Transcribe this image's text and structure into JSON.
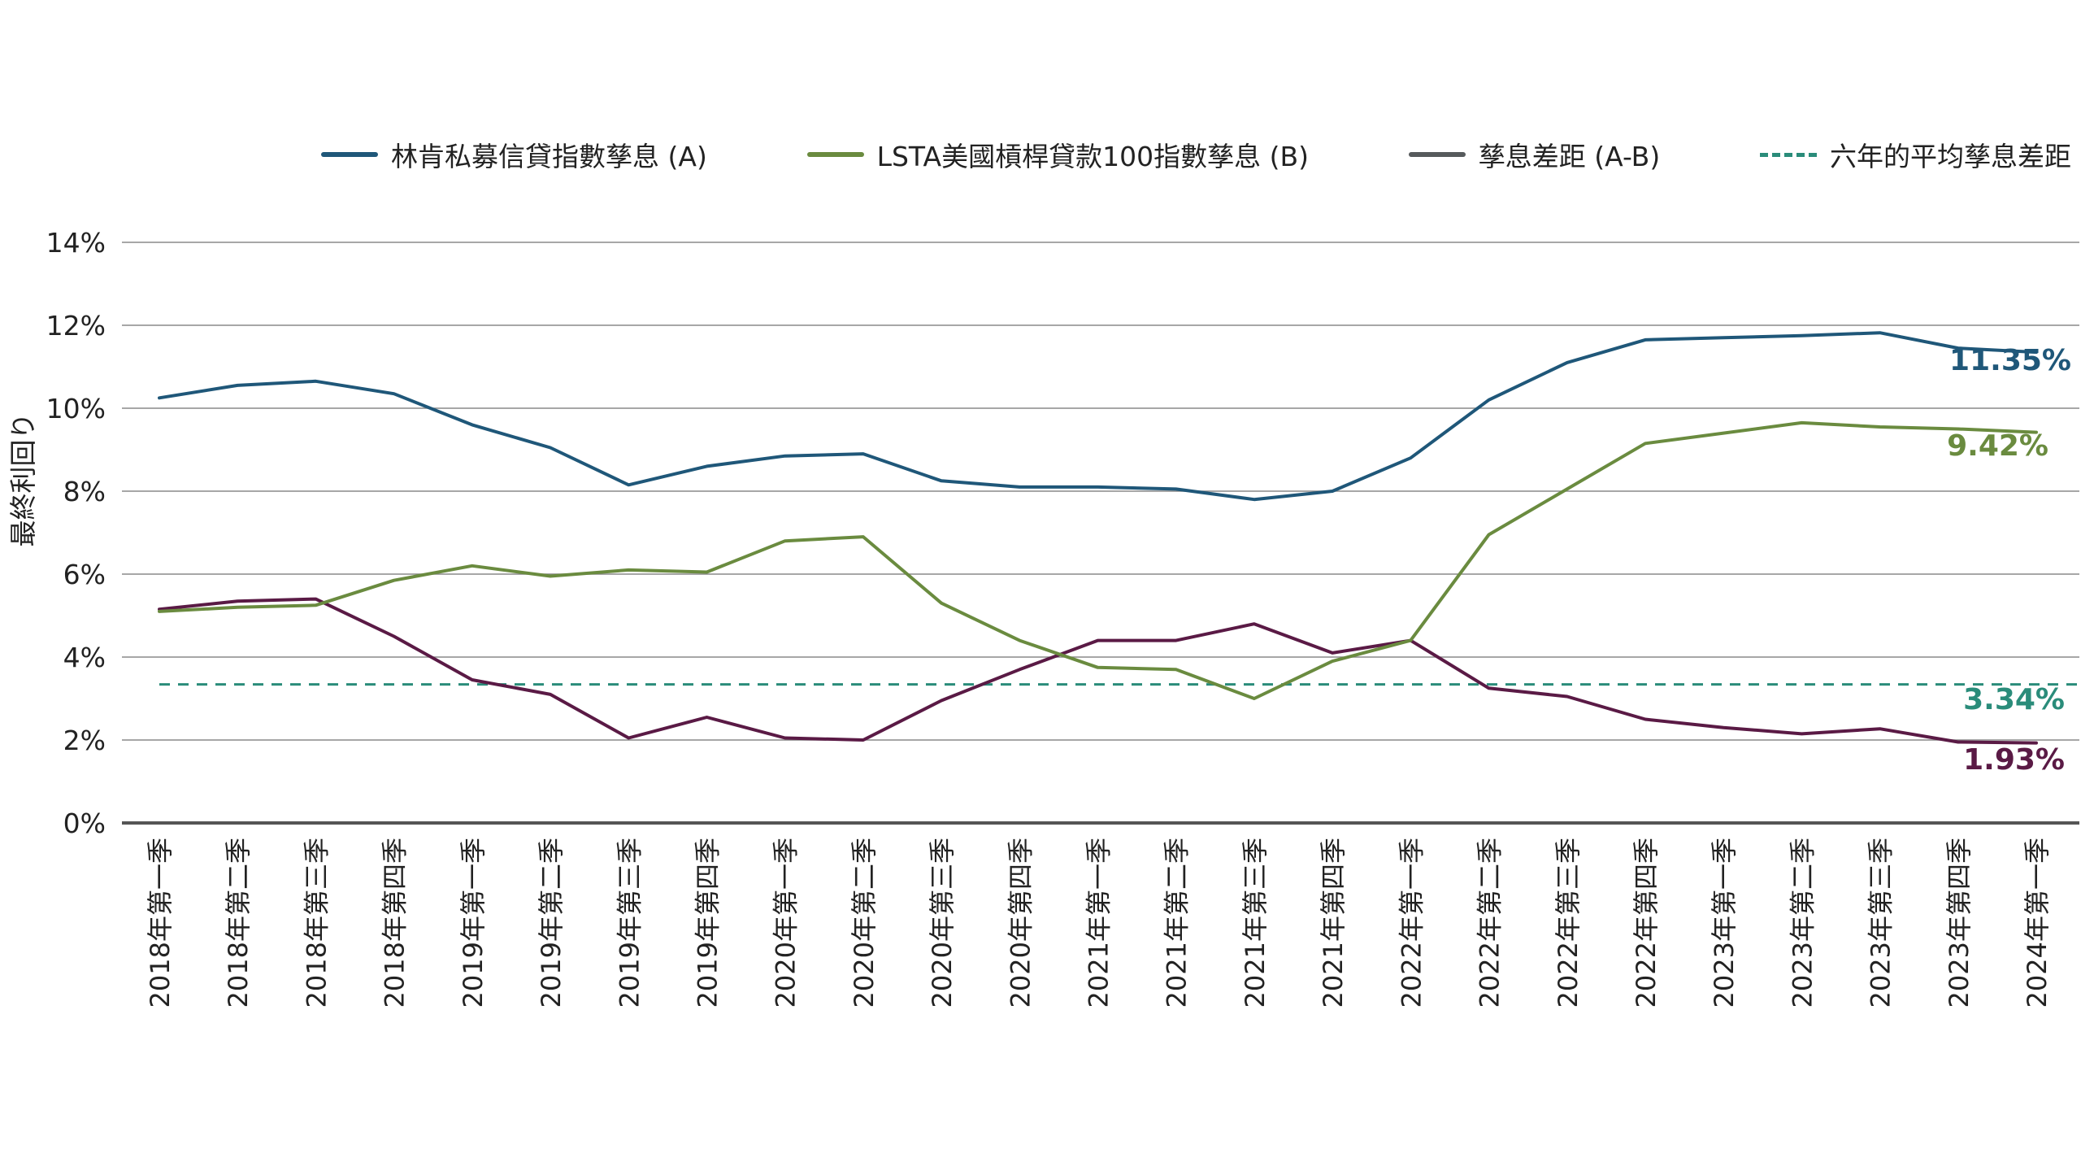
{
  "chart_data": {
    "type": "line",
    "ylabel": "最終利回り",
    "ylim": [
      0,
      14
    ],
    "yticks": [
      "0%",
      "2%",
      "4%",
      "6%",
      "8%",
      "10%",
      "12%",
      "14%"
    ],
    "grid": true,
    "legend_position": "top",
    "categories": [
      "2018年第一季",
      "2018年第二季",
      "2018年第三季",
      "2018年第四季",
      "2019年第一季",
      "2019年第二季",
      "2019年第三季",
      "2019年第四季",
      "2020年第一季",
      "2020年第二季",
      "2020年第三季",
      "2020年第四季",
      "2021年第一季",
      "2021年第二季",
      "2021年第三季",
      "2021年第四季",
      "2022年第一季",
      "2022年第二季",
      "2022年第三季",
      "2022年第四季",
      "2023年第一季",
      "2023年第二季",
      "2023年第三季",
      "2023年第四季",
      "2024年第一季"
    ],
    "series": [
      {
        "name": "林肯私募信貸指數孳息 (A)",
        "color": "#1f5779",
        "style": "solid",
        "values": [
          10.25,
          10.55,
          10.65,
          10.35,
          9.6,
          9.05,
          8.15,
          8.6,
          8.85,
          8.9,
          8.25,
          8.1,
          8.1,
          8.05,
          7.8,
          8.0,
          8.8,
          10.2,
          11.1,
          11.65,
          11.7,
          11.75,
          11.82,
          11.45,
          11.35
        ],
        "end_label": "11.35%"
      },
      {
        "name": "LSTA美國槓桿貸款100指數孳息 (B)",
        "color": "#6a8b3f",
        "style": "solid",
        "values": [
          5.1,
          5.2,
          5.25,
          5.85,
          6.2,
          5.95,
          6.1,
          6.05,
          6.8,
          6.9,
          5.3,
          4.4,
          3.75,
          3.7,
          3.0,
          3.9,
          4.4,
          6.95,
          8.05,
          9.15,
          9.4,
          9.65,
          9.55,
          9.5,
          9.42
        ],
        "end_label": "9.42%"
      },
      {
        "name": "孳息差距 (A-B)",
        "color": "#565a5c",
        "legend_only": true,
        "style": "solid",
        "values": [
          5.15,
          5.35,
          5.4,
          4.5,
          3.45,
          3.1,
          2.05,
          2.55,
          2.05,
          2.0,
          2.95,
          3.7,
          4.4,
          4.4,
          4.8,
          4.1,
          4.4,
          3.25,
          3.05,
          2.5,
          2.3,
          2.15,
          2.27,
          1.95,
          1.93
        ],
        "plot_color": "#5a1a45",
        "end_label": "1.93%"
      },
      {
        "name": "六年的平均孳息差距",
        "color": "#2a8c7a",
        "style": "dashed",
        "values": [
          3.34,
          3.34,
          3.34,
          3.34,
          3.34,
          3.34,
          3.34,
          3.34,
          3.34,
          3.34,
          3.34,
          3.34,
          3.34,
          3.34,
          3.34,
          3.34,
          3.34,
          3.34,
          3.34,
          3.34,
          3.34,
          3.34,
          3.34,
          3.34,
          3.34
        ],
        "end_label": "3.34%"
      }
    ]
  }
}
